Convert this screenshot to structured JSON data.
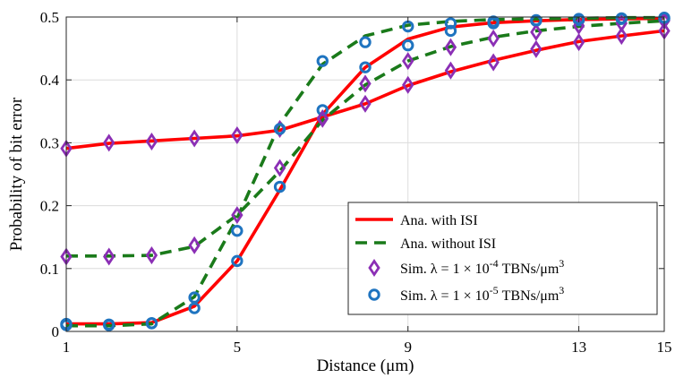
{
  "chart_data": {
    "type": "line",
    "xlabel": "Distance (μm)",
    "ylabel": "Probability of bit error",
    "xlim": [
      1,
      15
    ],
    "ylim": [
      0,
      0.5
    ],
    "xticks": [
      "1",
      "5",
      "9",
      "13",
      "15"
    ],
    "yticks": [
      "0",
      "0.1",
      "0.2",
      "0.3",
      "0.4",
      "0.5"
    ],
    "xtick_values": [
      1,
      5,
      9,
      13,
      15
    ],
    "ytick_values": [
      0,
      0.1,
      0.2,
      0.3,
      0.4,
      0.5
    ],
    "grid": true,
    "legend_position": "bottom-right",
    "series": [
      {
        "name": "Ana. with ISI",
        "style": "solid",
        "color": "#ff0000",
        "subseries": [
          {
            "x": [
              1,
              2,
              3,
              4,
              5,
              6,
              7,
              8,
              9,
              10,
              11,
              12,
              13,
              14,
              15
            ],
            "y": [
              0.291,
              0.299,
              0.303,
              0.307,
              0.311,
              0.32,
              0.341,
              0.362,
              0.391,
              0.413,
              0.431,
              0.447,
              0.461,
              0.47,
              0.478
            ]
          },
          {
            "x": [
              1,
              2,
              3,
              4,
              5,
              6,
              7,
              8,
              9,
              10,
              11,
              12,
              13,
              14,
              15
            ],
            "y": [
              0.012,
              0.012,
              0.014,
              0.04,
              0.112,
              0.225,
              0.345,
              0.42,
              0.465,
              0.484,
              0.491,
              0.494,
              0.496,
              0.497,
              0.498
            ]
          }
        ]
      },
      {
        "name": "Ana. without ISI",
        "style": "dashed",
        "color": "#1a7a1a",
        "subseries": [
          {
            "x": [
              1,
              2,
              3,
              4,
              5,
              6,
              7,
              8,
              9,
              10,
              11,
              12,
              13,
              14,
              15
            ],
            "y": [
              0.12,
              0.12,
              0.121,
              0.135,
              0.185,
              0.255,
              0.336,
              0.392,
              0.43,
              0.453,
              0.468,
              0.478,
              0.485,
              0.49,
              0.494
            ]
          },
          {
            "x": [
              1,
              2,
              3,
              4,
              5,
              6,
              7,
              8,
              9,
              10,
              11,
              12,
              13,
              14,
              15
            ],
            "y": [
              0.009,
              0.009,
              0.012,
              0.055,
              0.18,
              0.33,
              0.425,
              0.47,
              0.487,
              0.493,
              0.496,
              0.497,
              0.498,
              0.499,
              0.499
            ]
          }
        ]
      },
      {
        "name": "Sim. λ = 1 × 10⁻⁴ TBNs/μm³",
        "style": "marker-diamond",
        "color": "#8b2fb5",
        "x": [
          1,
          2,
          3,
          4,
          5,
          6,
          7,
          8,
          9,
          10,
          11,
          12,
          13,
          14,
          15
        ],
        "y": [
          0.291,
          0.3,
          0.302,
          0.307,
          0.312,
          0.322,
          0.339,
          0.362,
          0.392,
          0.415,
          0.428,
          0.449,
          0.46,
          0.47,
          0.478
        ],
        "x2": [
          1,
          2,
          3,
          4,
          5,
          6,
          7,
          8,
          9,
          10,
          11,
          12,
          13,
          14,
          15
        ],
        "y2": [
          0.119,
          0.119,
          0.121,
          0.137,
          0.185,
          0.26,
          0.338,
          0.394,
          0.43,
          0.452,
          0.466,
          0.476,
          0.486,
          0.49,
          0.494
        ]
      },
      {
        "name": "Sim. λ = 1 × 10⁻⁵ TBNs/μm³",
        "style": "marker-circle",
        "color": "#1f74c0",
        "x": [
          1,
          2,
          3,
          4,
          5,
          6,
          7,
          8,
          9,
          10,
          11,
          12,
          13,
          14,
          15
        ],
        "y": [
          0.012,
          0.011,
          0.013,
          0.037,
          0.112,
          0.23,
          0.352,
          0.42,
          0.455,
          0.478,
          0.49,
          0.494,
          0.495,
          0.497,
          0.497
        ],
        "x2": [
          1,
          2,
          3,
          4,
          5,
          6,
          7,
          8,
          9,
          10,
          11,
          12,
          13,
          14,
          15
        ],
        "y2": [
          0.01,
          0.01,
          0.013,
          0.054,
          0.16,
          0.322,
          0.43,
          0.46,
          0.485,
          0.49,
          0.493,
          0.495,
          0.497,
          0.498,
          0.499
        ]
      }
    ]
  },
  "legend": {
    "entries": [
      {
        "prefix": "Ana. with ISI",
        "middle": "",
        "suffix": ""
      },
      {
        "prefix": "Ana. without ISI",
        "middle": "",
        "suffix": ""
      },
      {
        "prefix": "Sim. λ = 1 × 10",
        "middle": "-4",
        "suffix": " TBNs/μm",
        "sup": "3"
      },
      {
        "prefix": "Sim. λ = 1 × 10",
        "middle": "-5",
        "suffix": " TBNs/μm",
        "sup": "3"
      }
    ]
  }
}
